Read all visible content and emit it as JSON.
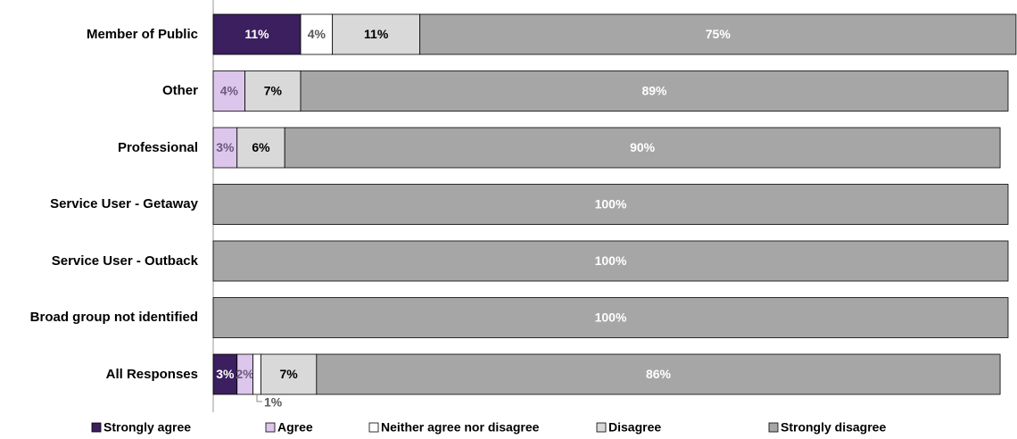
{
  "chart_data": {
    "type": "stacked-bar-horizontal",
    "categories": [
      "Member of Public",
      "Other",
      "Professional",
      "Service User - Getaway",
      "Service User - Outback",
      "Broad group not identified",
      "All Responses"
    ],
    "series": [
      {
        "name": "Strongly agree",
        "color": "#3b1f5e",
        "label_color": "#ffffff",
        "values": [
          11,
          0,
          0,
          0,
          0,
          0,
          3
        ],
        "value_labels": [
          "11%",
          null,
          null,
          null,
          null,
          null,
          "3%"
        ]
      },
      {
        "name": "Agree",
        "color": "#dcc6ec",
        "label_color": "#6e5a7e",
        "values": [
          0,
          4,
          3,
          0,
          0,
          0,
          2
        ],
        "value_labels": [
          null,
          "4%",
          "3%",
          null,
          null,
          null,
          "2%"
        ]
      },
      {
        "name": "Neither agree nor disagree",
        "color": "#ffffff",
        "label_color": "#595959",
        "values": [
          4,
          0,
          0,
          0,
          0,
          0,
          1
        ],
        "value_labels": [
          "4%",
          null,
          null,
          null,
          null,
          null,
          "1%"
        ]
      },
      {
        "name": "Disagree",
        "color": "#d9d9d9",
        "label_color": "#000000",
        "values": [
          11,
          7,
          6,
          0,
          0,
          0,
          7
        ],
        "value_labels": [
          "11%",
          "7%",
          "6%",
          null,
          null,
          null,
          "7%"
        ]
      },
      {
        "name": "Strongly disagree",
        "color": "#a6a6a6",
        "label_color": "#ffffff",
        "values": [
          75,
          89,
          90,
          100,
          100,
          100,
          86
        ],
        "value_labels": [
          "75%",
          "89%",
          "90%",
          "100%",
          "100%",
          "100%",
          "86%"
        ]
      }
    ],
    "xlim": [
      0,
      100
    ],
    "legend": "bottom"
  }
}
